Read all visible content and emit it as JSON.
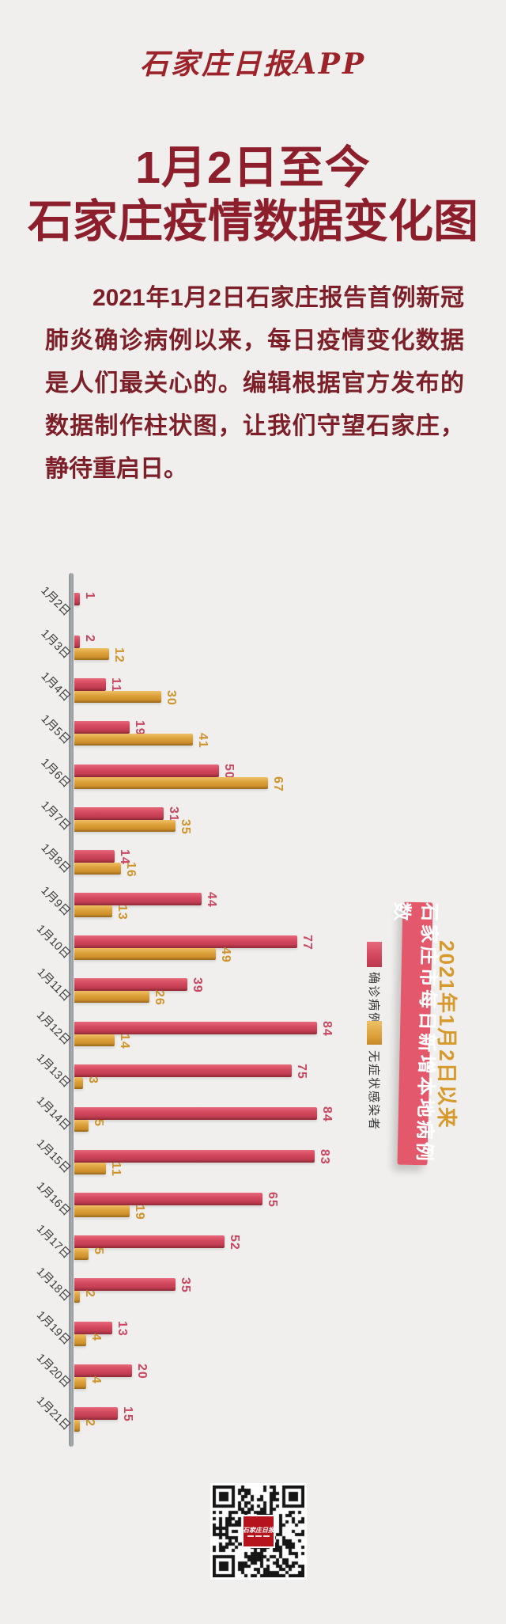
{
  "header": {
    "logo": "石家庄日报APP",
    "title_line1": "1月2日至今",
    "title_line2": "石家庄疫情数据变化图"
  },
  "intro": {
    "text": "2021年1月2日石家庄报告首例新冠肺炎确诊病例以来，每日疫情变化数据是人们最关心的。编辑根据官方发布的数据制作柱状图，让我们守望石家庄，静待重启日。"
  },
  "colors": {
    "background": "#f0efed",
    "title": "#8d1f2d",
    "confirmed_bar": "#d0455c",
    "asymptomatic_bar": "#dda23b",
    "banner_bg": "#e4586b",
    "banner_sub_text": "#d7992c",
    "axis": "#9aa0a3"
  },
  "chart_data": {
    "type": "bar",
    "orientation": "horizontal",
    "grid": false,
    "legend_position": "right",
    "categories": [
      "1月2日",
      "1月3日",
      "1月4日",
      "1月5日",
      "1月6日",
      "1月7日",
      "1月8日",
      "1月9日",
      "1月10日",
      "1月11日",
      "1月12日",
      "1月13日",
      "1月14日",
      "1月15日",
      "1月16日",
      "1月17日",
      "1月18日",
      "1月19日",
      "1月20日",
      "1月21日"
    ],
    "series": [
      {
        "name": "确诊病例",
        "color": "#d0455c",
        "values": [
          1,
          2,
          11,
          19,
          50,
          31,
          14,
          44,
          77,
          39,
          84,
          75,
          84,
          83,
          65,
          52,
          35,
          13,
          20,
          15
        ]
      },
      {
        "name": "无症状感染者",
        "color": "#dda23b",
        "values": [
          null,
          12,
          30,
          41,
          67,
          35,
          16,
          13,
          49,
          26,
          14,
          3,
          5,
          11,
          19,
          5,
          2,
          4,
          4,
          2
        ]
      }
    ],
    "annotations": {
      "banner_title": "石家庄市每日新增本地病例数",
      "banner_subtitle": "2021年1月2日以来"
    },
    "value_range": [
      0,
      84
    ]
  },
  "qr": {
    "center_label": "石家庄日报"
  }
}
